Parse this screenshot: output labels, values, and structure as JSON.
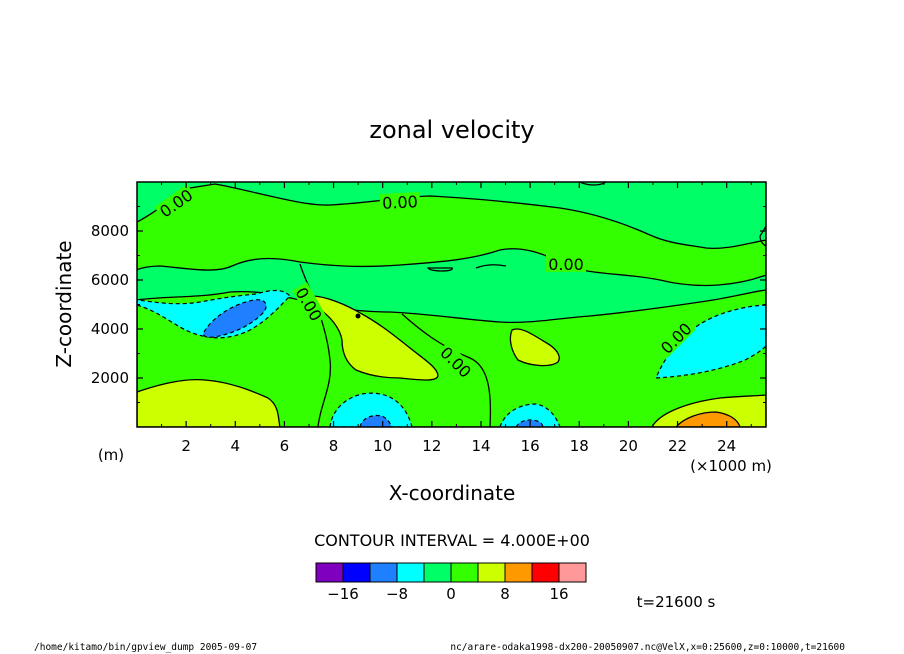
{
  "chart_data": {
    "type": "contour",
    "title": "zonal velocity",
    "xlabel": "X-coordinate",
    "ylabel": "Z-coordinate",
    "x_unit": "(×1000 m)",
    "y_unit": "(m)",
    "xlim": [
      0,
      25.6
    ],
    "ylim": [
      0,
      10000
    ],
    "x_ticks": [
      2,
      4,
      6,
      8,
      10,
      12,
      14,
      16,
      18,
      20,
      22,
      24
    ],
    "y_ticks": [
      2000,
      4000,
      6000,
      8000
    ],
    "contour_labels": [
      "0.00",
      "0.00",
      "0.00",
      "0.00",
      "0.00",
      "0.00"
    ],
    "contour_interval_text": "CONTOUR INTERVAL = 4.000E+00",
    "colorbar": {
      "colors": [
        "#7f00bf",
        "#0000ff",
        "#1e7fff",
        "#00ffff",
        "#00ff66",
        "#33ff00",
        "#ccff00",
        "#ff9900",
        "#ff0000",
        "#ff9999"
      ],
      "tick_labels": [
        "−16",
        "−8",
        "0",
        "8",
        "16"
      ]
    },
    "time_label": "t=21600 s",
    "grid": false
  },
  "footer": {
    "left": "/home/kitamo/bin/gpview_dump  2005-09-07",
    "right": "nc/arare-odaka1998-dx200-20050907.nc@VelX,x=0:25600,z=0:10000,t=21600"
  }
}
